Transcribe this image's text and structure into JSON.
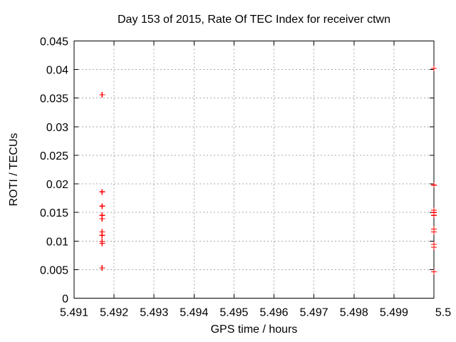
{
  "colors": {
    "background": "#ffffff",
    "axis": "#000000",
    "grid": "#a8a8a8",
    "marker": "#ff0000",
    "text": "#000000"
  },
  "chart_data": {
    "type": "scatter",
    "title": "Day 153 of 2015, Rate Of TEC Index for receiver ctwn",
    "xlabel": "GPS time / hours",
    "ylabel": "ROTI / TECUs",
    "xlim": [
      5.491,
      5.5
    ],
    "ylim": [
      0,
      0.045
    ],
    "grid": true,
    "legend": "none",
    "xticks": [
      {
        "v": 5.491,
        "label": "5.491"
      },
      {
        "v": 5.492,
        "label": "5.492"
      },
      {
        "v": 5.493,
        "label": "5.493"
      },
      {
        "v": 5.494,
        "label": "5.494"
      },
      {
        "v": 5.495,
        "label": "5.495"
      },
      {
        "v": 5.496,
        "label": "5.496"
      },
      {
        "v": 5.497,
        "label": "5.497"
      },
      {
        "v": 5.498,
        "label": "5.498"
      },
      {
        "v": 5.499,
        "label": "5.499"
      },
      {
        "v": 5.5,
        "label": "5.5"
      }
    ],
    "yticks": [
      {
        "v": 0,
        "label": "0"
      },
      {
        "v": 0.005,
        "label": "0.005"
      },
      {
        "v": 0.01,
        "label": "0.01"
      },
      {
        "v": 0.015,
        "label": "0.015"
      },
      {
        "v": 0.02,
        "label": "0.02"
      },
      {
        "v": 0.025,
        "label": "0.025"
      },
      {
        "v": 0.03,
        "label": "0.03"
      },
      {
        "v": 0.035,
        "label": "0.035"
      },
      {
        "v": 0.04,
        "label": "0.04"
      },
      {
        "v": 0.045,
        "label": "0.045"
      }
    ],
    "series": [
      {
        "marker": "plus",
        "color": "#ff0000",
        "points": [
          [
            5.4917,
            0.0356
          ],
          [
            5.4917,
            0.0186
          ],
          [
            5.4917,
            0.0161
          ],
          [
            5.4917,
            0.0145
          ],
          [
            5.4917,
            0.0139
          ],
          [
            5.4917,
            0.0116
          ],
          [
            5.4917,
            0.011
          ],
          [
            5.4917,
            0.0099
          ],
          [
            5.4917,
            0.0096
          ],
          [
            5.4917,
            0.0053
          ],
          [
            5.5,
            0.0402
          ],
          [
            5.5,
            0.0198
          ],
          [
            5.5,
            0.0154
          ],
          [
            5.5,
            0.015
          ],
          [
            5.5,
            0.0145
          ],
          [
            5.5,
            0.0121
          ],
          [
            5.5,
            0.0116
          ],
          [
            5.5,
            0.0094
          ],
          [
            5.5,
            0.0089
          ],
          [
            5.5,
            0.0046
          ]
        ]
      }
    ]
  }
}
